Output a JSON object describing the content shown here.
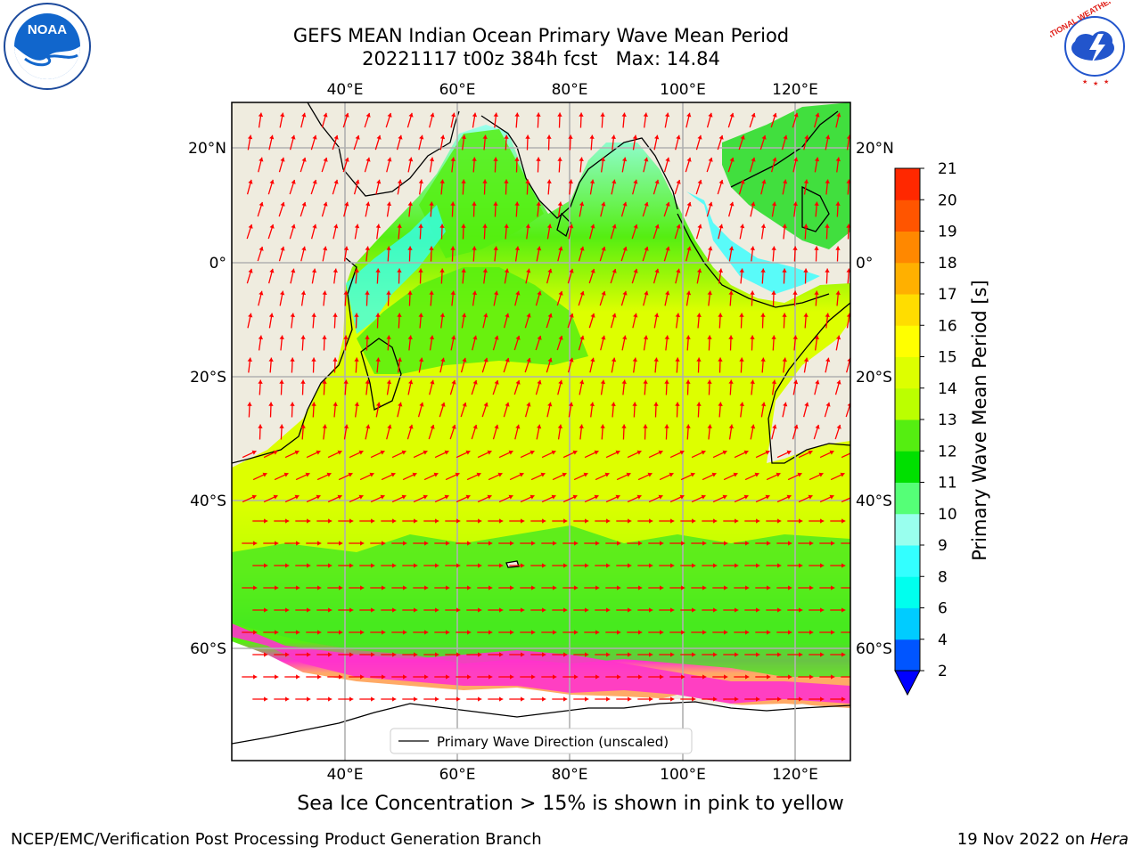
{
  "title": {
    "line1": "GEFS MEAN Indian Ocean Primary Wave Mean Period",
    "line2": "20221117 t00z 384h fcst   Max: 14.84"
  },
  "map": {
    "lon_ticks_top": [
      "40°E",
      "60°E",
      "80°E",
      "100°E",
      "120°E"
    ],
    "lon_ticks_bottom": [
      "40°E",
      "60°E",
      "80°E",
      "100°E",
      "120°E"
    ],
    "lat_ticks_left": [
      "20°N",
      "0°",
      "20°S",
      "40°S",
      "60°S"
    ],
    "lat_ticks_right": [
      "20°N",
      "0°",
      "20°S",
      "40°S",
      "60°S"
    ],
    "lon_range": [
      20,
      130
    ],
    "lat_range": [
      -78,
      28
    ],
    "gridlines": true,
    "land_color": "#efecdf",
    "arrow_color": "#ff0000",
    "legend_label": "Primary Wave Direction (unscaled)"
  },
  "colorbar": {
    "label": "Primary Wave Mean Period [s]",
    "tick_labels": [
      "2",
      "4",
      "6",
      "8",
      "9",
      "10",
      "11",
      "12",
      "13",
      "14",
      "15",
      "16",
      "17",
      "18",
      "19",
      "20",
      "21"
    ],
    "colors": [
      "#0055ff",
      "#00ccff",
      "#00ffee",
      "#33ffff",
      "#99ffee",
      "#55ff77",
      "#00e000",
      "#55ee11",
      "#bbff00",
      "#ddff00",
      "#ffff00",
      "#ffdd00",
      "#ffb000",
      "#ff8800",
      "#ff5500",
      "#ff2800"
    ],
    "extend_color": "#0000ff"
  },
  "caption": "Sea Ice Concentration > 15% is shown in pink to yellow",
  "footer": {
    "left": "NCEP/EMC/Verification Post Processing Product Generation Branch",
    "right_date": "19 Nov 2022 on ",
    "right_host": "Hera"
  },
  "logos": {
    "noaa_text": "NOAA",
    "nws_text": "NATIONAL WEATHER SERVICE"
  }
}
